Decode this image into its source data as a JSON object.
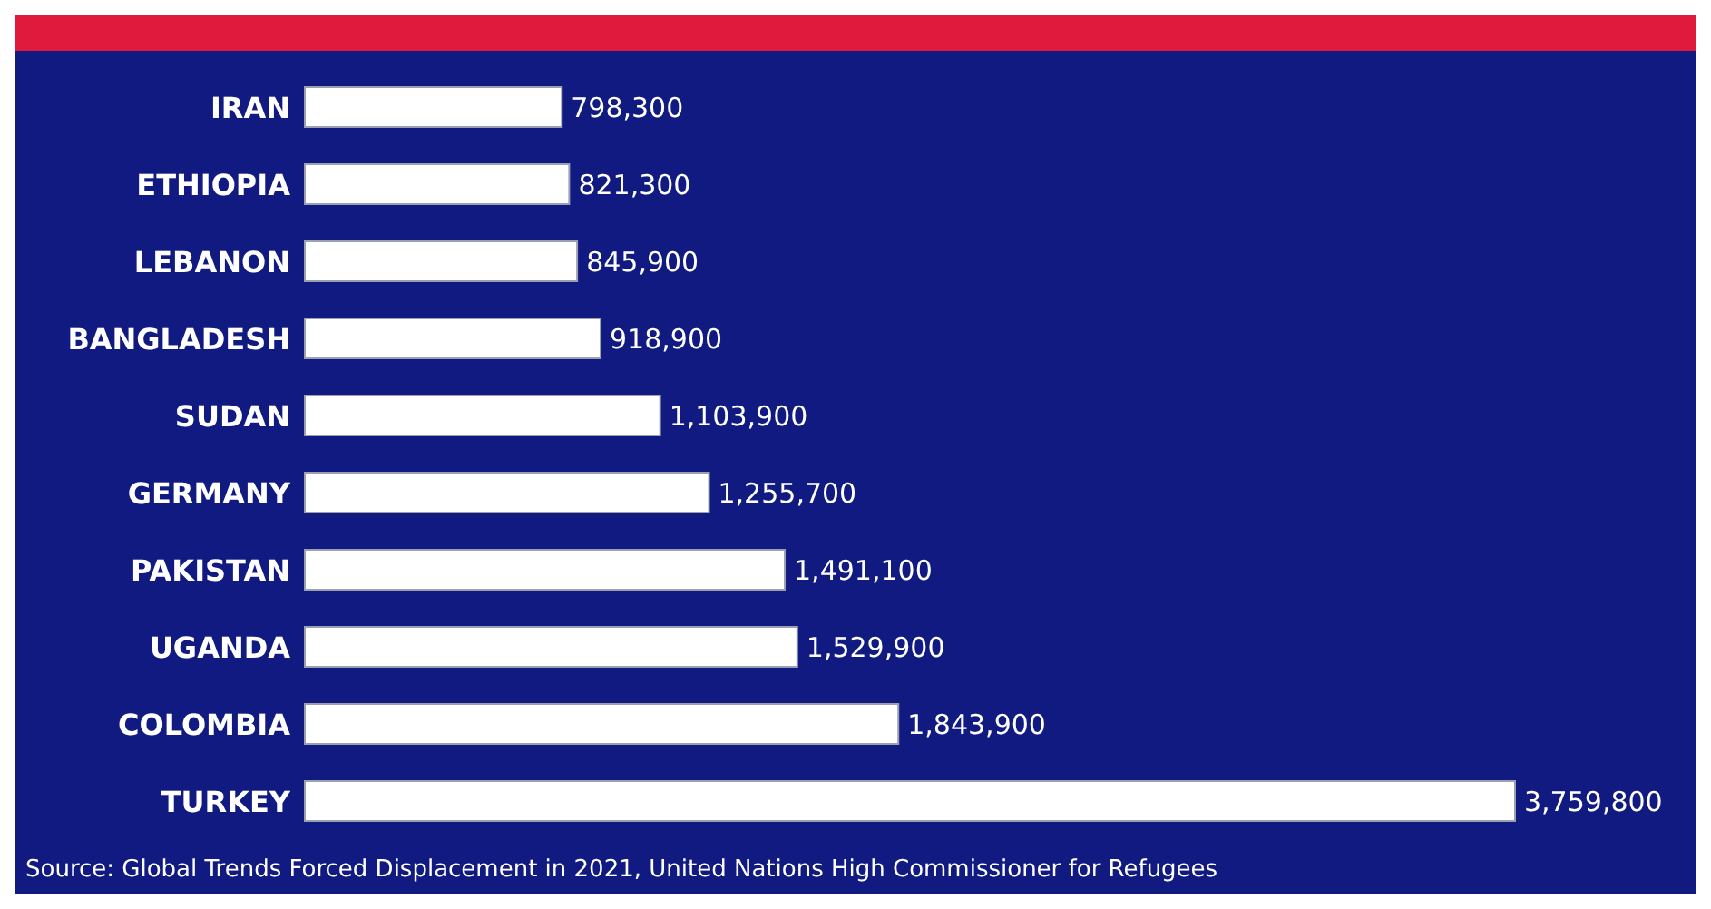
{
  "chart_data": {
    "type": "bar",
    "orientation": "horizontal",
    "categories": [
      "IRAN",
      "ETHIOPIA",
      "LEBANON",
      "BANGLADESH",
      "SUDAN",
      "GERMANY",
      "PAKISTAN",
      "UGANDA",
      "COLOMBIA",
      "TURKEY"
    ],
    "values": [
      798300,
      821300,
      845900,
      918900,
      1103900,
      1255700,
      1491100,
      1529900,
      1843900,
      3759800
    ],
    "value_labels": [
      "798,300",
      "821,300",
      "845,900",
      "918,900",
      "1,103,900",
      "1,255,700",
      "1,491,100",
      "1,529,900",
      "1,843,900",
      "3,759,800"
    ],
    "color": "#ffffff",
    "annotations": [
      "Source: Global Trends Forced Displacement in 2021, United Nations High Commissioner for Refugees"
    ]
  }
}
